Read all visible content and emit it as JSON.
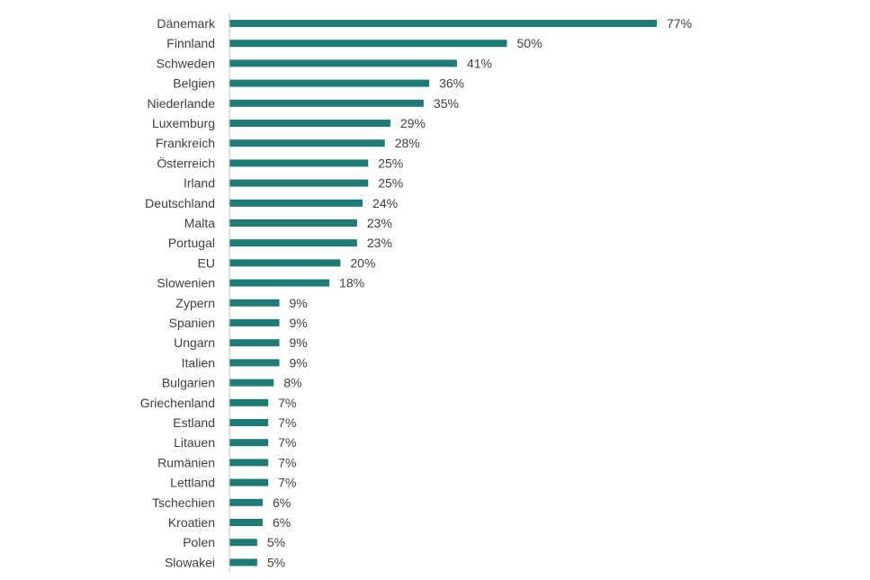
{
  "chart_data": {
    "type": "bar",
    "orientation": "horizontal",
    "title": "",
    "xlabel": "",
    "ylabel": "",
    "value_suffix": "%",
    "xlim": [
      0,
      77
    ],
    "grid": false,
    "legend": "none",
    "bar_color": "#1F7B75",
    "axis_color": "#BFBFBF",
    "categories": [
      "Dänemark",
      "Finnland",
      "Schweden",
      "Belgien",
      "Niederlande",
      "Luxemburg",
      "Frankreich",
      "Österreich",
      "Irland",
      "Deutschland",
      "Malta",
      "Portugal",
      "EU",
      "Slowenien",
      "Zypern",
      "Spanien",
      "Ungarn",
      "Italien",
      "Bulgarien",
      "Griechenland",
      "Estland",
      "Litauen",
      "Rumänien",
      "Lettland",
      "Tschechien",
      "Kroatien",
      "Polen",
      "Slowakei"
    ],
    "values": [
      77,
      50,
      41,
      36,
      35,
      29,
      28,
      25,
      25,
      24,
      23,
      23,
      20,
      18,
      9,
      9,
      9,
      9,
      8,
      7,
      7,
      7,
      7,
      7,
      6,
      6,
      5,
      5
    ]
  }
}
